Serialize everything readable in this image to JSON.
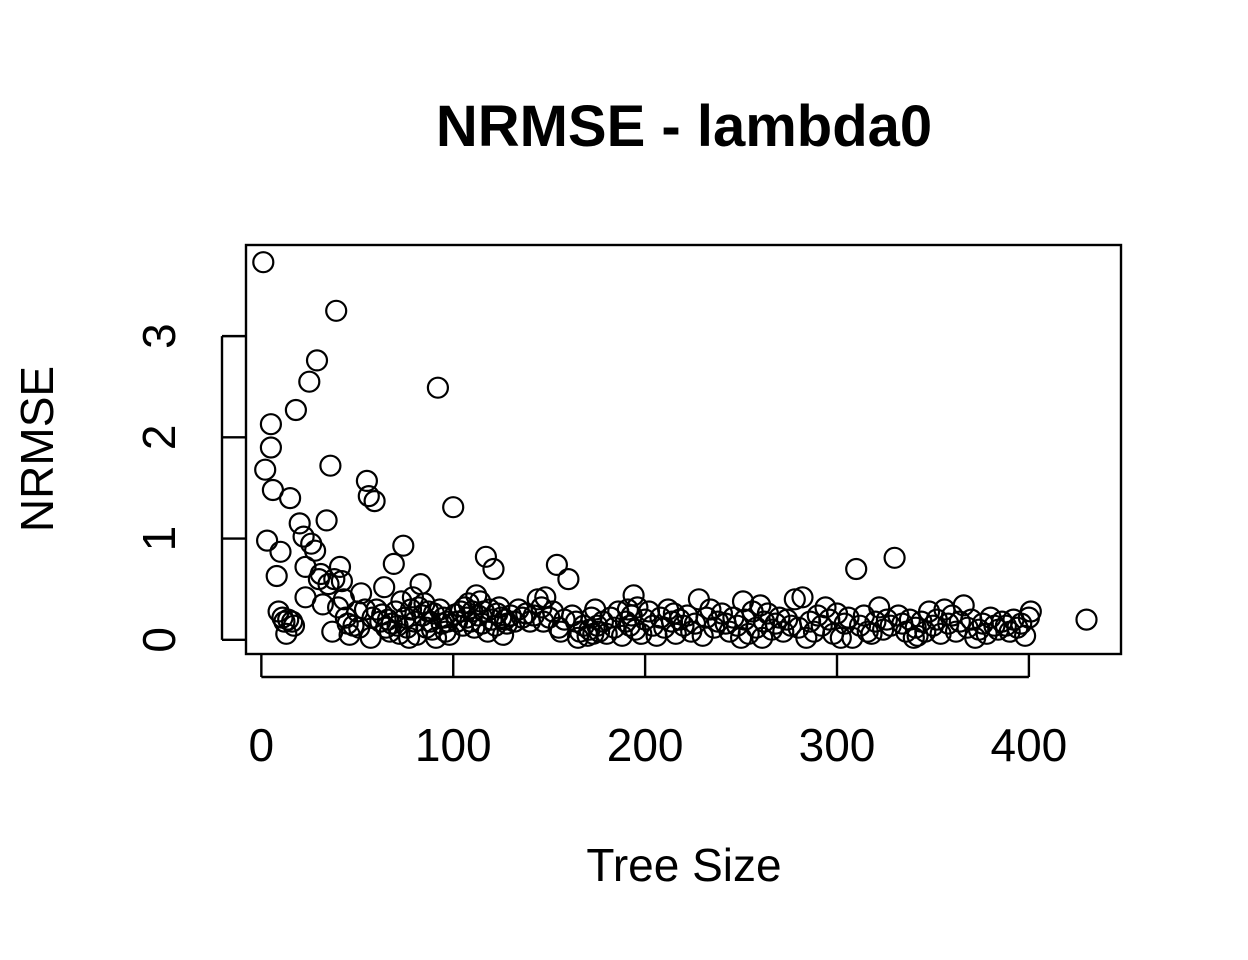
{
  "chart_data": {
    "type": "scatter",
    "title": "NRMSE - lambda0",
    "xlabel": "Tree Size",
    "ylabel": "NRMSE",
    "xlim": [
      -8,
      448
    ],
    "ylim": [
      -0.14,
      3.9
    ],
    "x_ticks": [
      0,
      100,
      200,
      300,
      400
    ],
    "y_ticks": [
      0,
      1,
      2,
      3
    ],
    "x_tick_labels": [
      "0",
      "100",
      "200",
      "300",
      "400"
    ],
    "y_tick_labels": [
      "0",
      "1",
      "2",
      "3"
    ],
    "grid": false,
    "legend": "none",
    "point_style": "open-circle",
    "points": [
      [
        1,
        3.73
      ],
      [
        2,
        1.68
      ],
      [
        3,
        0.98
      ],
      [
        5,
        1.9
      ],
      [
        5,
        2.13
      ],
      [
        6,
        1.48
      ],
      [
        8,
        0.63
      ],
      [
        9,
        0.28
      ],
      [
        10,
        0.87
      ],
      [
        11,
        0.22
      ],
      [
        12,
        0.18
      ],
      [
        13,
        0.06
      ],
      [
        14,
        0.2
      ],
      [
        15,
        1.4
      ],
      [
        16,
        0.18
      ],
      [
        17,
        0.14
      ],
      [
        18,
        2.27
      ],
      [
        20,
        1.15
      ],
      [
        22,
        1.02
      ],
      [
        23,
        0.72
      ],
      [
        23,
        0.42
      ],
      [
        25,
        2.55
      ],
      [
        26,
        0.95
      ],
      [
        28,
        0.88
      ],
      [
        29,
        2.76
      ],
      [
        30,
        0.6
      ],
      [
        31,
        0.65
      ],
      [
        32,
        0.35
      ],
      [
        34,
        1.18
      ],
      [
        35,
        0.55
      ],
      [
        36,
        1.72
      ],
      [
        37,
        0.08
      ],
      [
        38,
        0.6
      ],
      [
        39,
        3.25
      ],
      [
        40,
        0.32
      ],
      [
        41,
        0.72
      ],
      [
        42,
        0.58
      ],
      [
        43,
        0.4
      ],
      [
        44,
        0.22
      ],
      [
        45,
        0.16
      ],
      [
        46,
        0.05
      ],
      [
        48,
        0.14
      ],
      [
        50,
        0.28
      ],
      [
        51,
        0.12
      ],
      [
        52,
        0.46
      ],
      [
        54,
        0.3
      ],
      [
        55,
        1.57
      ],
      [
        56,
        1.42
      ],
      [
        57,
        0.02
      ],
      [
        58,
        0.22
      ],
      [
        59,
        1.37
      ],
      [
        60,
        0.3
      ],
      [
        62,
        0.18
      ],
      [
        63,
        0.25
      ],
      [
        64,
        0.52
      ],
      [
        65,
        0.12
      ],
      [
        66,
        0.2
      ],
      [
        67,
        0.08
      ],
      [
        68,
        0.16
      ],
      [
        69,
        0.75
      ],
      [
        70,
        0.28
      ],
      [
        71,
        0.14
      ],
      [
        72,
        0.06
      ],
      [
        73,
        0.38
      ],
      [
        74,
        0.93
      ],
      [
        75,
        0.22
      ],
      [
        76,
        0.12
      ],
      [
        77,
        0.02
      ],
      [
        78,
        0.3
      ],
      [
        79,
        0.42
      ],
      [
        80,
        0.18
      ],
      [
        81,
        0.05
      ],
      [
        82,
        0.32
      ],
      [
        83,
        0.55
      ],
      [
        84,
        0.24
      ],
      [
        85,
        0.36
      ],
      [
        86,
        0.12
      ],
      [
        87,
        0.28
      ],
      [
        88,
        0.18
      ],
      [
        89,
        0.1
      ],
      [
        90,
        0.26
      ],
      [
        91,
        0.02
      ],
      [
        92,
        2.49
      ],
      [
        93,
        0.3
      ],
      [
        94,
        0.16
      ],
      [
        95,
        0.22
      ],
      [
        96,
        0.08
      ],
      [
        97,
        0.18
      ],
      [
        98,
        0.05
      ],
      [
        100,
        1.31
      ],
      [
        101,
        0.25
      ],
      [
        102,
        0.18
      ],
      [
        104,
        0.28
      ],
      [
        105,
        0.14
      ],
      [
        106,
        0.32
      ],
      [
        107,
        0.22
      ],
      [
        108,
        0.36
      ],
      [
        109,
        0.18
      ],
      [
        110,
        0.28
      ],
      [
        111,
        0.12
      ],
      [
        112,
        0.44
      ],
      [
        113,
        0.24
      ],
      [
        114,
        0.38
      ],
      [
        115,
        0.16
      ],
      [
        116,
        0.28
      ],
      [
        117,
        0.82
      ],
      [
        118,
        0.08
      ],
      [
        119,
        0.3
      ],
      [
        120,
        0.2
      ],
      [
        121,
        0.7
      ],
      [
        122,
        0.14
      ],
      [
        123,
        0.26
      ],
      [
        124,
        0.32
      ],
      [
        125,
        0.22
      ],
      [
        126,
        0.05
      ],
      [
        127,
        0.2
      ],
      [
        128,
        0.16
      ],
      [
        130,
        0.24
      ],
      [
        132,
        0.18
      ],
      [
        134,
        0.3
      ],
      [
        136,
        0.22
      ],
      [
        138,
        0.26
      ],
      [
        140,
        0.18
      ],
      [
        142,
        0.24
      ],
      [
        144,
        0.4
      ],
      [
        146,
        0.32
      ],
      [
        147,
        0.18
      ],
      [
        148,
        0.42
      ],
      [
        150,
        0.22
      ],
      [
        152,
        0.28
      ],
      [
        154,
        0.74
      ],
      [
        155,
        0.12
      ],
      [
        156,
        0.08
      ],
      [
        158,
        0.2
      ],
      [
        160,
        0.6
      ],
      [
        162,
        0.24
      ],
      [
        164,
        0.18
      ],
      [
        165,
        0.02
      ],
      [
        166,
        0.08
      ],
      [
        168,
        0.14
      ],
      [
        170,
        0.04
      ],
      [
        171,
        0.1
      ],
      [
        172,
        0.22
      ],
      [
        173,
        0.06
      ],
      [
        174,
        0.3
      ],
      [
        175,
        0.14
      ],
      [
        176,
        0.08
      ],
      [
        178,
        0.18
      ],
      [
        180,
        0.06
      ],
      [
        182,
        0.22
      ],
      [
        184,
        0.12
      ],
      [
        186,
        0.28
      ],
      [
        188,
        0.04
      ],
      [
        190,
        0.18
      ],
      [
        191,
        0.3
      ],
      [
        192,
        0.14
      ],
      [
        193,
        0.24
      ],
      [
        194,
        0.44
      ],
      [
        195,
        0.1
      ],
      [
        196,
        0.32
      ],
      [
        198,
        0.06
      ],
      [
        200,
        0.2
      ],
      [
        202,
        0.28
      ],
      [
        204,
        0.14
      ],
      [
        206,
        0.04
      ],
      [
        208,
        0.22
      ],
      [
        210,
        0.12
      ],
      [
        212,
        0.3
      ],
      [
        214,
        0.18
      ],
      [
        215,
        0.26
      ],
      [
        216,
        0.06
      ],
      [
        218,
        0.2
      ],
      [
        220,
        0.14
      ],
      [
        222,
        0.24
      ],
      [
        224,
        0.08
      ],
      [
        226,
        0.16
      ],
      [
        228,
        0.4
      ],
      [
        230,
        0.04
      ],
      [
        232,
        0.22
      ],
      [
        234,
        0.3
      ],
      [
        236,
        0.12
      ],
      [
        238,
        0.18
      ],
      [
        240,
        0.26
      ],
      [
        242,
        0.16
      ],
      [
        244,
        0.08
      ],
      [
        246,
        0.22
      ],
      [
        248,
        0.14
      ],
      [
        250,
        0.02
      ],
      [
        251,
        0.38
      ],
      [
        252,
        0.2
      ],
      [
        254,
        0.06
      ],
      [
        256,
        0.28
      ],
      [
        258,
        0.12
      ],
      [
        260,
        0.34
      ],
      [
        261,
        0.02
      ],
      [
        262,
        0.18
      ],
      [
        264,
        0.26
      ],
      [
        266,
        0.1
      ],
      [
        268,
        0.16
      ],
      [
        270,
        0.22
      ],
      [
        272,
        0.08
      ],
      [
        274,
        0.2
      ],
      [
        276,
        0.14
      ],
      [
        278,
        0.4
      ],
      [
        280,
        0.12
      ],
      [
        282,
        0.42
      ],
      [
        284,
        0.02
      ],
      [
        286,
        0.18
      ],
      [
        288,
        0.08
      ],
      [
        290,
        0.24
      ],
      [
        292,
        0.14
      ],
      [
        294,
        0.32
      ],
      [
        296,
        0.2
      ],
      [
        298,
        0.06
      ],
      [
        300,
        0.26
      ],
      [
        302,
        0.02
      ],
      [
        304,
        0.16
      ],
      [
        306,
        0.22
      ],
      [
        308,
        0.02
      ],
      [
        310,
        0.7
      ],
      [
        312,
        0.14
      ],
      [
        314,
        0.24
      ],
      [
        316,
        0.08
      ],
      [
        318,
        0.06
      ],
      [
        320,
        0.18
      ],
      [
        322,
        0.32
      ],
      [
        324,
        0.1
      ],
      [
        326,
        0.2
      ],
      [
        328,
        0.14
      ],
      [
        330,
        0.81
      ],
      [
        332,
        0.24
      ],
      [
        334,
        0.16
      ],
      [
        336,
        0.08
      ],
      [
        338,
        0.2
      ],
      [
        340,
        0.02
      ],
      [
        341,
        0.12
      ],
      [
        342,
        0.04
      ],
      [
        344,
        0.18
      ],
      [
        346,
        0.08
      ],
      [
        348,
        0.28
      ],
      [
        350,
        0.14
      ],
      [
        352,
        0.2
      ],
      [
        354,
        0.06
      ],
      [
        356,
        0.3
      ],
      [
        358,
        0.16
      ],
      [
        360,
        0.24
      ],
      [
        362,
        0.08
      ],
      [
        364,
        0.18
      ],
      [
        366,
        0.34
      ],
      [
        368,
        0.12
      ],
      [
        370,
        0.2
      ],
      [
        372,
        0.02
      ],
      [
        374,
        0.1
      ],
      [
        376,
        0.16
      ],
      [
        378,
        0.06
      ],
      [
        380,
        0.22
      ],
      [
        382,
        0.14
      ],
      [
        384,
        0.1
      ],
      [
        386,
        0.18
      ],
      [
        388,
        0.14
      ],
      [
        390,
        0.08
      ],
      [
        392,
        0.2
      ],
      [
        394,
        0.12
      ],
      [
        396,
        0.16
      ],
      [
        398,
        0.04
      ],
      [
        400,
        0.22
      ],
      [
        401,
        0.28
      ],
      [
        430,
        0.2
      ]
    ]
  }
}
